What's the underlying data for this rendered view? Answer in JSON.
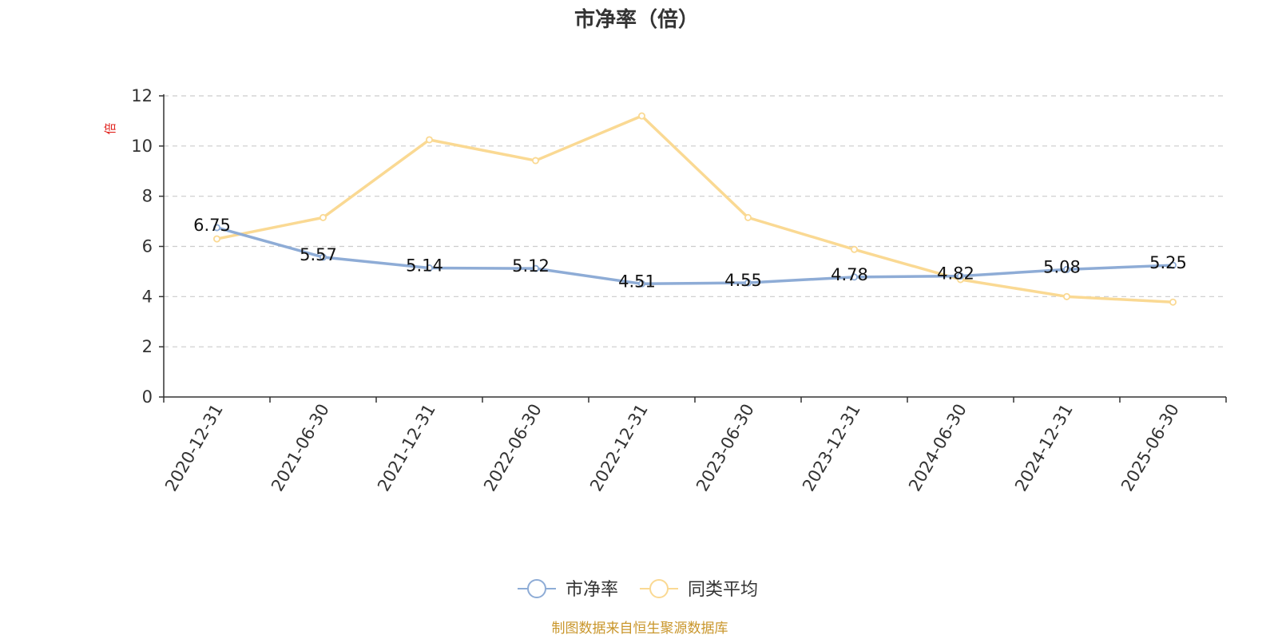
{
  "chart_data": {
    "type": "line",
    "title": "市净率（倍）",
    "y_unit": "倍",
    "categories": [
      "2020-12-31",
      "2021-06-30",
      "2021-12-31",
      "2022-06-30",
      "2022-12-31",
      "2023-06-30",
      "2023-12-31",
      "2024-06-30",
      "2024-12-31",
      "2025-06-30"
    ],
    "y_ticks": [
      "0",
      "2",
      "4",
      "6",
      "8",
      "10",
      "12"
    ],
    "ylim": [
      0,
      12
    ],
    "grid": true,
    "legend_position": "bottom",
    "series": [
      {
        "name": "市净率",
        "color": "#8eacd6",
        "values": [
          6.75,
          5.57,
          5.14,
          5.12,
          4.51,
          4.55,
          4.78,
          4.82,
          5.08,
          5.25
        ],
        "labels": [
          "6.75",
          "5.57",
          "5.14",
          "5.12",
          "4.51",
          "4.55",
          "4.78",
          "4.82",
          "5.08",
          "5.25"
        ]
      },
      {
        "name": "同类平均",
        "color": "#fad993",
        "values": [
          6.3,
          7.15,
          10.25,
          9.42,
          11.2,
          7.15,
          5.88,
          4.68,
          4.0,
          3.78
        ]
      }
    ],
    "source": "制图数据来自恒生聚源数据库",
    "source_color": "#c9962b",
    "unit_color": "#e0201b"
  }
}
